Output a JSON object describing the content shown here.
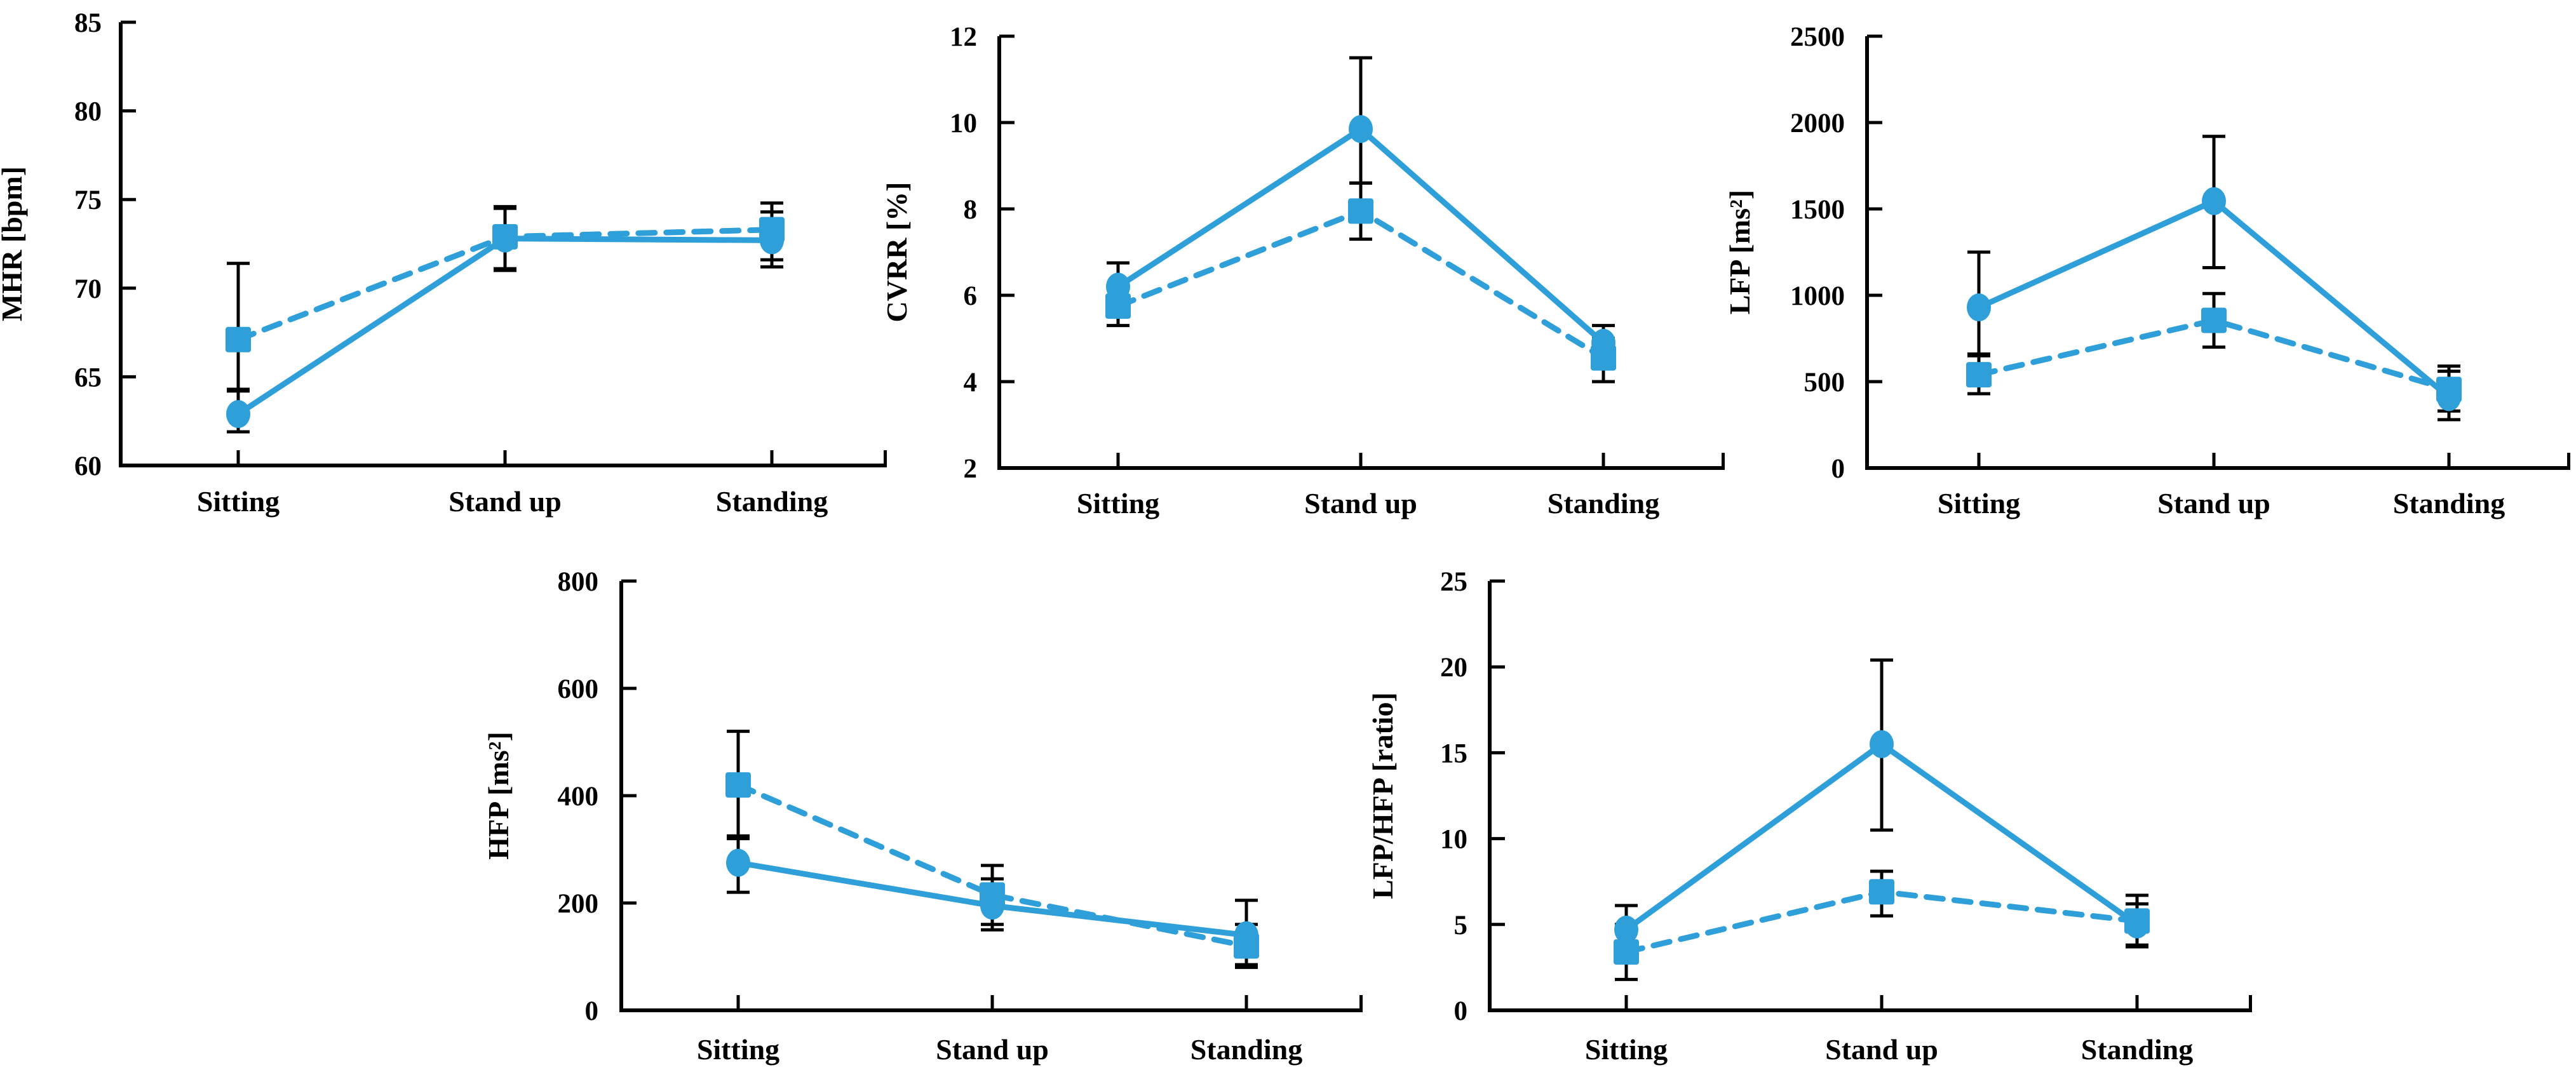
{
  "figure": {
    "description": "Five line charts with error bars comparing two groups (solid line with circle markers, dashed line with square markers) across three postural conditions",
    "conditions": [
      "Sitting",
      "Stand up",
      "Standing"
    ]
  },
  "colors": {
    "series_blue": "#2E9FD9",
    "axis_black": "#000000",
    "text_black": "#000000",
    "background": "#FFFFFF"
  },
  "chart_data": [
    {
      "id": "mhr",
      "type": "line",
      "title": "",
      "xlabel": "",
      "ylabel": "MHR [bpm]",
      "ylim": [
        60,
        85
      ],
      "yticks": [
        60,
        65,
        70,
        75,
        80,
        85
      ],
      "grid": false,
      "legend": "none",
      "categories": [
        "Sitting",
        "Stand up",
        "Standing"
      ],
      "series": [
        {
          "name": "solid-circle",
          "marker": "circle",
          "line_style": "solid",
          "values": [
            62.9,
            72.8,
            72.7
          ],
          "err_low": [
            61.9,
            71.1,
            71.2
          ],
          "err_high": [
            64.2,
            74.6,
            74.3
          ]
        },
        {
          "name": "dashed-square",
          "marker": "square",
          "line_style": "dashed",
          "values": [
            67.1,
            72.9,
            73.3
          ],
          "err_low": [
            64.3,
            71.0,
            71.6
          ],
          "err_high": [
            71.4,
            74.5,
            74.8
          ]
        }
      ]
    },
    {
      "id": "cvrr",
      "type": "line",
      "title": "",
      "xlabel": "",
      "ylabel": "CVRR [%]",
      "ylim": [
        2,
        12
      ],
      "yticks": [
        2,
        4,
        6,
        8,
        10,
        12
      ],
      "grid": false,
      "legend": "none",
      "categories": [
        "Sitting",
        "Stand up",
        "Standing"
      ],
      "series": [
        {
          "name": "solid-circle",
          "marker": "circle",
          "line_style": "solid",
          "values": [
            6.2,
            9.85,
            4.9
          ],
          "err_low": [
            5.75,
            8.6,
            4.5
          ],
          "err_high": [
            6.75,
            11.5,
            5.3
          ]
        },
        {
          "name": "dashed-square",
          "marker": "square",
          "line_style": "dashed",
          "values": [
            5.75,
            7.95,
            4.55
          ],
          "err_low": [
            5.3,
            7.3,
            4.0
          ],
          "err_high": [
            6.2,
            8.6,
            5.0
          ]
        }
      ]
    },
    {
      "id": "lfp",
      "type": "line",
      "title": "",
      "xlabel": "",
      "ylabel": "LFP [ms²]",
      "ylim": [
        0,
        2500
      ],
      "yticks": [
        0,
        500,
        1000,
        1500,
        2000,
        2500
      ],
      "grid": false,
      "legend": "none",
      "categories": [
        "Sitting",
        "Stand up",
        "Standing"
      ],
      "series": [
        {
          "name": "solid-circle",
          "marker": "circle",
          "line_style": "solid",
          "values": [
            930,
            1545,
            410
          ],
          "err_low": [
            650,
            1160,
            280
          ],
          "err_high": [
            1250,
            1920,
            560
          ]
        },
        {
          "name": "dashed-square",
          "marker": "square",
          "line_style": "dashed",
          "values": [
            540,
            855,
            455
          ],
          "err_low": [
            430,
            700,
            330
          ],
          "err_high": [
            660,
            1010,
            590
          ]
        }
      ]
    },
    {
      "id": "hfp",
      "type": "line",
      "title": "",
      "xlabel": "",
      "ylabel": "HFP [ms²]",
      "ylim": [
        0,
        800
      ],
      "yticks": [
        0,
        200,
        400,
        600,
        800
      ],
      "grid": false,
      "legend": "none",
      "categories": [
        "Sitting",
        "Stand up",
        "Standing"
      ],
      "series": [
        {
          "name": "solid-circle",
          "marker": "circle",
          "line_style": "solid",
          "values": [
            275,
            195,
            140
          ],
          "err_low": [
            220,
            150,
            85
          ],
          "err_high": [
            325,
            245,
            205
          ]
        },
        {
          "name": "dashed-square",
          "marker": "square",
          "line_style": "dashed",
          "values": [
            420,
            215,
            120
          ],
          "err_low": [
            320,
            160,
            80
          ],
          "err_high": [
            520,
            270,
            160
          ]
        }
      ]
    },
    {
      "id": "lfp-hfp",
      "type": "line",
      "title": "",
      "xlabel": "",
      "ylabel": "LFP/HFP [ratio]",
      "ylim": [
        0,
        25
      ],
      "yticks": [
        0,
        5,
        10,
        15,
        20,
        25
      ],
      "grid": false,
      "legend": "none",
      "categories": [
        "Sitting",
        "Stand up",
        "Standing"
      ],
      "series": [
        {
          "name": "solid-circle",
          "marker": "circle",
          "line_style": "solid",
          "values": [
            4.7,
            15.5,
            5.0
          ],
          "err_low": [
            3.3,
            10.5,
            3.7
          ],
          "err_high": [
            6.1,
            20.4,
            6.7
          ]
        },
        {
          "name": "dashed-square",
          "marker": "square",
          "line_style": "dashed",
          "values": [
            3.4,
            6.9,
            5.2
          ],
          "err_low": [
            1.8,
            5.5,
            3.8
          ],
          "err_high": [
            5.0,
            8.1,
            6.2
          ]
        }
      ]
    }
  ]
}
